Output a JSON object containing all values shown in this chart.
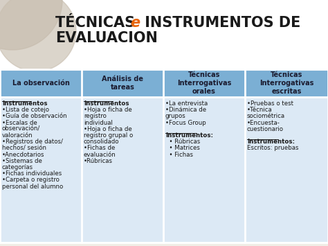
{
  "title_part1": "TÉCNICAS ",
  "title_e": "e",
  "title_part2": " INSTRUMENTOS DE",
  "title_line2": "EVALUACION",
  "header_bg": "#7bafd4",
  "header_text_color": "#1a1a2e",
  "body_bg": "#dce9f5",
  "title_area_bg": "#f0ede6",
  "white_bg": "#ffffff",
  "col_headers": [
    "La observación",
    "Análisis de\ntareas",
    "Técnicas\nInterrogativas\norales",
    "Técnicas\nInterrogativas\nescritas"
  ],
  "col1_content": [
    [
      "Instrumentos",
      true
    ],
    [
      "•Lista de cotejo",
      false
    ],
    [
      "•Guía de observación",
      false
    ],
    [
      "•Escalas de",
      false
    ],
    [
      "observación/",
      false
    ],
    [
      "valoración",
      false
    ],
    [
      "•Registros de datos/",
      false
    ],
    [
      "hechos/ sesión",
      false
    ],
    [
      "•Anecdotarios",
      false
    ],
    [
      "•Sistemas de",
      false
    ],
    [
      "categorías",
      false
    ],
    [
      "•Fichas individuales",
      false
    ],
    [
      "•Carpeta o registro",
      false
    ],
    [
      "personal del alumno",
      false
    ]
  ],
  "col2_content": [
    [
      "Instrumentos",
      true
    ],
    [
      "•Hoja o ficha de",
      false
    ],
    [
      "registro",
      false
    ],
    [
      "individual",
      false
    ],
    [
      "•Hoja o ficha de",
      false
    ],
    [
      "registro grupal o",
      false
    ],
    [
      "consolidado",
      false
    ],
    [
      "•Fichas de",
      false
    ],
    [
      "evaluación",
      false
    ],
    [
      "•Rúbricas",
      false
    ]
  ],
  "col3_content": [
    [
      "•La entrevista",
      false
    ],
    [
      "•Dinámica de",
      false
    ],
    [
      "grupos",
      false
    ],
    [
      "•Focus Group",
      false
    ],
    [
      "",
      false
    ],
    [
      "Instrumentos:",
      true
    ],
    [
      "  • Rúbricas",
      false
    ],
    [
      "  • Matrices",
      false
    ],
    [
      "  • Fichas",
      false
    ]
  ],
  "col4_content": [
    [
      "•Pruebas o test",
      false
    ],
    [
      "•Técnica",
      false
    ],
    [
      "sociométrica",
      false
    ],
    [
      "•Encuesta-",
      false
    ],
    [
      "cuestionario",
      false
    ],
    [
      "",
      false
    ],
    [
      "Instrumentos:",
      true
    ],
    [
      "Escritos: pruebas",
      false
    ]
  ],
  "circle_color1": "#b5a898",
  "circle_color2": "#c9bfb0",
  "title_color": "#1a1a1a",
  "e_color": "#e8650a",
  "text_color": "#1a1a1a",
  "border_color": "#ffffff",
  "figsize": [
    4.74,
    3.55
  ],
  "dpi": 100
}
